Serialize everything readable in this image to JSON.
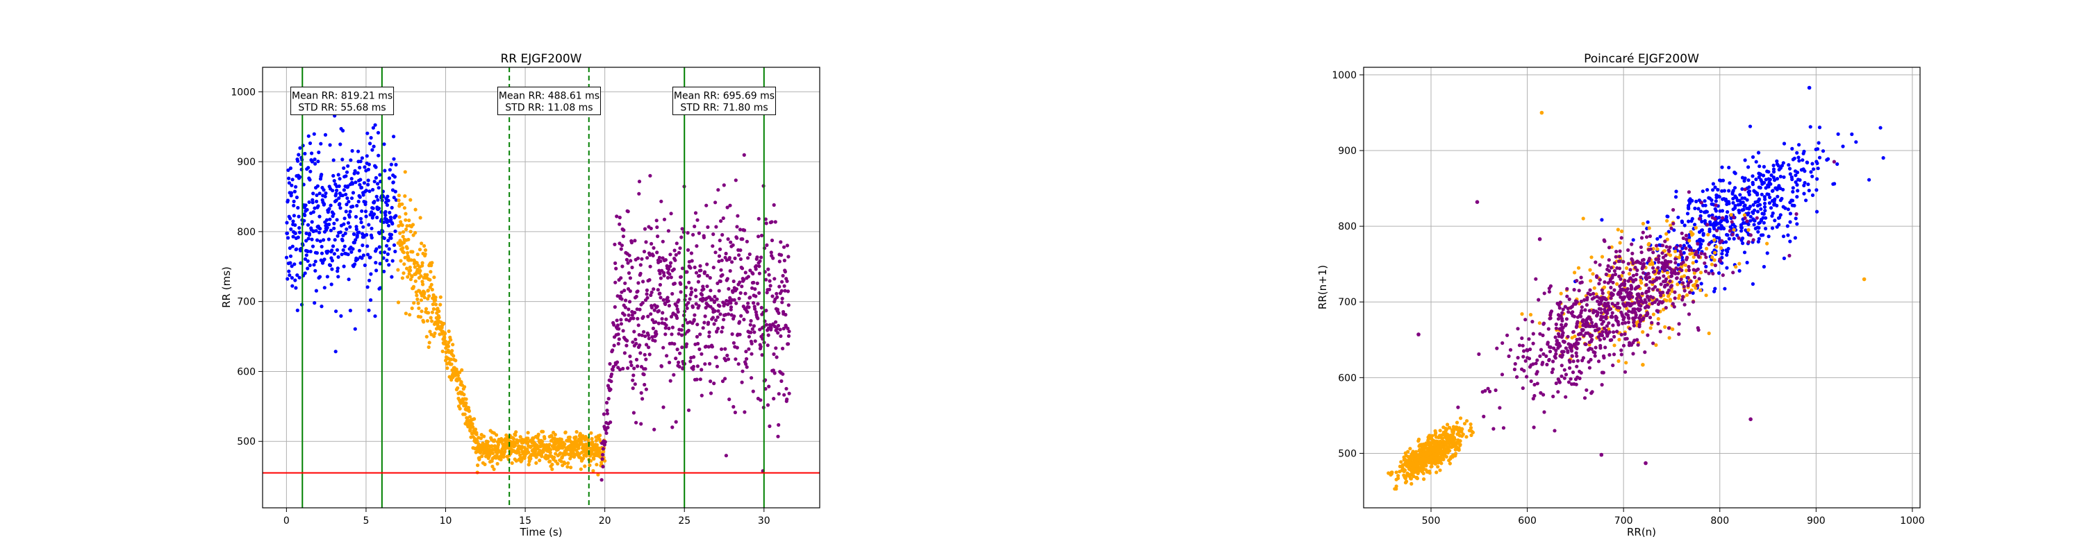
{
  "chart_data": [
    {
      "type": "scatter",
      "title": "RR EJGF200W",
      "xlabel": "Time (s)",
      "ylabel": "RR (ms)",
      "xlim": [
        -1.5,
        33.5
      ],
      "ylim": [
        405,
        1035
      ],
      "xticks": [
        0,
        5,
        10,
        15,
        20,
        25,
        30
      ],
      "yticks": [
        500,
        600,
        700,
        800,
        900,
        1000
      ],
      "grid": true,
      "series": [
        {
          "color": "#0000ff",
          "segments": [
            {
              "x0": 0.0,
              "x1": 6.9,
              "mean": 820,
              "spread": 55,
              "n": 520
            }
          ]
        },
        {
          "color": "#ffa500",
          "segments": [
            {
              "x0": 7.0,
              "x1": 9.3,
              "y0": 800,
              "y1": 690,
              "spread": 35,
              "n": 170
            },
            {
              "x0": 9.3,
              "x1": 12.0,
              "y0": 690,
              "y1": 495,
              "spread": 14,
              "n": 190
            },
            {
              "x0": 12.0,
              "x1": 20.0,
              "mean": 489,
              "spread": 11,
              "n": 600
            }
          ]
        },
        {
          "color": "#800080",
          "segments": [
            {
              "x0": 19.8,
              "x1": 20.6,
              "y0": 470,
              "y1": 640,
              "spread": 20,
              "n": 40
            },
            {
              "x0": 20.6,
              "x1": 31.6,
              "mean": 690,
              "spread": 70,
              "n": 780
            }
          ]
        }
      ],
      "vlines": [
        {
          "x": 1,
          "color": "#008000",
          "style": "solid"
        },
        {
          "x": 6,
          "color": "#008000",
          "style": "solid"
        },
        {
          "x": 14,
          "color": "#008000",
          "style": "dashed"
        },
        {
          "x": 19,
          "color": "#008000",
          "style": "dashed"
        },
        {
          "x": 25,
          "color": "#008000",
          "style": "solid"
        },
        {
          "x": 30,
          "color": "#008000",
          "style": "solid"
        }
      ],
      "hline": {
        "y": 455,
        "color": "#ff0000"
      },
      "annotations": [
        {
          "x": 3.5,
          "y": 982,
          "mean_text": "Mean RR: 819.21 ms",
          "std_text": "STD RR: 55.68 ms"
        },
        {
          "x": 16.5,
          "y": 982,
          "mean_text": "Mean RR: 488.61 ms",
          "std_text": "STD RR: 11.08 ms"
        },
        {
          "x": 27.5,
          "y": 982,
          "mean_text": "Mean RR: 695.69 ms",
          "std_text": "STD RR: 71.80 ms"
        }
      ]
    },
    {
      "type": "scatter",
      "title": "Poincaré EJGF200W",
      "xlabel": "RR(n)",
      "ylabel": "RR(n+1)",
      "xlim": [
        430,
        1008
      ],
      "ylim": [
        428,
        1010
      ],
      "xticks": [
        500,
        600,
        700,
        800,
        900,
        1000
      ],
      "yticks": [
        500,
        600,
        700,
        800,
        900,
        1000
      ],
      "grid": true,
      "series": [
        {
          "color": "#0000ff",
          "center": [
            820,
            820
          ],
          "spread_along": 55,
          "spread_across": 26,
          "n": 520
        },
        {
          "color": "#ffa500",
          "center": [
            500,
            500
          ],
          "spread_along": 22,
          "spread_across": 8,
          "n": 600
        },
        {
          "color": "#ffa500",
          "center": [
            720,
            720
          ],
          "spread_along": 55,
          "spread_across": 30,
          "n": 260
        },
        {
          "color": "#800080",
          "center": [
            690,
            690
          ],
          "spread_along": 70,
          "spread_across": 26,
          "n": 820
        }
      ],
      "outliers": [
        {
          "x": 615,
          "y": 950,
          "color": "#ffa500"
        },
        {
          "x": 950,
          "y": 730,
          "color": "#ffa500"
        },
        {
          "x": 548,
          "y": 832,
          "color": "#800080"
        },
        {
          "x": 487,
          "y": 657,
          "color": "#800080"
        },
        {
          "x": 613,
          "y": 783,
          "color": "#800080"
        },
        {
          "x": 832,
          "y": 545,
          "color": "#800080"
        },
        {
          "x": 677,
          "y": 498,
          "color": "#800080"
        },
        {
          "x": 723,
          "y": 487,
          "color": "#800080"
        },
        {
          "x": 720,
          "y": 617,
          "color": "#ffa500"
        },
        {
          "x": 893,
          "y": 983,
          "color": "#0000ff"
        }
      ]
    }
  ]
}
